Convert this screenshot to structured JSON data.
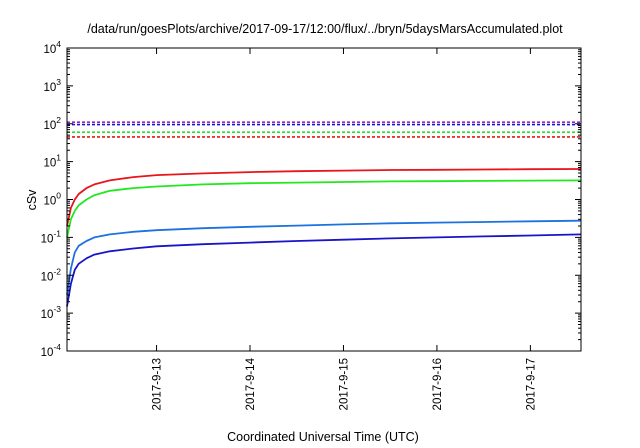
{
  "chart_data": {
    "type": "line",
    "title": "/data/run/goesPlots/archive/2017-09-17/12:00/flux/../bryn/5daysMarsAccumulated.plot",
    "xlabel": "Coordinated Universal Time (UTC)",
    "ylabel": "cSv",
    "y_scale": "log",
    "ylim": [
      0.0001,
      10000
    ],
    "y_ticks": [
      {
        "base": "10",
        "exp": "-4"
      },
      {
        "base": "10",
        "exp": "-3"
      },
      {
        "base": "10",
        "exp": "-2"
      },
      {
        "base": "10",
        "exp": "-1"
      },
      {
        "base": "10",
        "exp": "0"
      },
      {
        "base": "10",
        "exp": "1"
      },
      {
        "base": "10",
        "exp": "2"
      },
      {
        "base": "10",
        "exp": "3"
      },
      {
        "base": "10",
        "exp": "4"
      }
    ],
    "xlim": [
      "2017-09-12 01:00",
      "2017-09-17 13:00"
    ],
    "x_ticks": [
      "2017-9-13",
      "2017-9-14",
      "2017-9-15",
      "2017-9-16",
      "2017-9-17"
    ],
    "grid": false,
    "series": [
      {
        "color": "#e8151b",
        "style": "solid",
        "x": [
          "2017-09-12 01:00",
          "2017-09-12 02:00",
          "2017-09-12 03:00",
          "2017-09-12 04:00",
          "2017-09-12 06:00",
          "2017-09-12 08:00",
          "2017-09-12 12:00",
          "2017-09-12 18:00",
          "2017-09-13 00:00",
          "2017-09-13 12:00",
          "2017-09-14 00:00",
          "2017-09-14 12:00",
          "2017-09-15 00:00",
          "2017-09-15 12:00",
          "2017-09-16 00:00",
          "2017-09-16 12:00",
          "2017-09-17 00:00",
          "2017-09-17 13:00"
        ],
        "y": [
          0.2,
          0.6,
          1.0,
          1.4,
          2.0,
          2.5,
          3.2,
          3.9,
          4.4,
          4.9,
          5.3,
          5.6,
          5.8,
          6.0,
          6.1,
          6.2,
          6.3,
          6.4
        ]
      },
      {
        "color": "#22e81f",
        "style": "solid",
        "x": [
          "2017-09-12 01:00",
          "2017-09-12 02:00",
          "2017-09-12 03:00",
          "2017-09-12 04:00",
          "2017-09-12 06:00",
          "2017-09-12 08:00",
          "2017-09-12 12:00",
          "2017-09-12 18:00",
          "2017-09-13 00:00",
          "2017-09-13 12:00",
          "2017-09-14 00:00",
          "2017-09-14 12:00",
          "2017-09-15 00:00",
          "2017-09-15 12:00",
          "2017-09-16 00:00",
          "2017-09-16 12:00",
          "2017-09-17 00:00",
          "2017-09-17 13:00"
        ],
        "y": [
          0.1,
          0.3,
          0.5,
          0.7,
          1.0,
          1.3,
          1.7,
          2.0,
          2.2,
          2.5,
          2.7,
          2.8,
          2.9,
          3.0,
          3.05,
          3.1,
          3.15,
          3.2
        ]
      },
      {
        "color": "#1d72e0",
        "style": "solid",
        "x": [
          "2017-09-12 01:00",
          "2017-09-12 02:00",
          "2017-09-12 03:00",
          "2017-09-12 04:00",
          "2017-09-12 06:00",
          "2017-09-12 08:00",
          "2017-09-12 12:00",
          "2017-09-12 18:00",
          "2017-09-13 00:00",
          "2017-09-13 12:00",
          "2017-09-14 00:00",
          "2017-09-14 12:00",
          "2017-09-15 00:00",
          "2017-09-15 12:00",
          "2017-09-16 00:00",
          "2017-09-16 12:00",
          "2017-09-17 00:00",
          "2017-09-17 13:00"
        ],
        "y": [
          0.003,
          0.015,
          0.04,
          0.06,
          0.08,
          0.1,
          0.12,
          0.14,
          0.155,
          0.175,
          0.19,
          0.205,
          0.22,
          0.235,
          0.245,
          0.255,
          0.265,
          0.275
        ]
      },
      {
        "color": "#1a14c8",
        "style": "solid",
        "x": [
          "2017-09-12 01:00",
          "2017-09-12 02:00",
          "2017-09-12 03:00",
          "2017-09-12 04:00",
          "2017-09-12 06:00",
          "2017-09-12 08:00",
          "2017-09-12 12:00",
          "2017-09-12 18:00",
          "2017-09-13 00:00",
          "2017-09-13 12:00",
          "2017-09-14 00:00",
          "2017-09-14 12:00",
          "2017-09-15 00:00",
          "2017-09-15 12:00",
          "2017-09-16 00:00",
          "2017-09-16 12:00",
          "2017-09-17 00:00",
          "2017-09-17 13:00"
        ],
        "y": [
          0.0015,
          0.006,
          0.014,
          0.02,
          0.028,
          0.035,
          0.043,
          0.051,
          0.058,
          0.066,
          0.073,
          0.08,
          0.087,
          0.094,
          0.1,
          0.106,
          0.112,
          0.12
        ]
      },
      {
        "color": "#9b1fd6",
        "style": "dashed",
        "x": [
          "2017-09-12 01:00",
          "2017-09-17 13:00"
        ],
        "y": [
          110,
          110
        ]
      },
      {
        "color": "#1a14c8",
        "style": "dashed",
        "x": [
          "2017-09-12 01:00",
          "2017-09-17 13:00"
        ],
        "y": [
          95,
          95
        ]
      },
      {
        "color": "#22e81f",
        "style": "dashed",
        "x": [
          "2017-09-12 01:00",
          "2017-09-17 13:00"
        ],
        "y": [
          60,
          60
        ]
      },
      {
        "color": "#e8151b",
        "style": "dashed",
        "x": [
          "2017-09-12 01:00",
          "2017-09-17 13:00"
        ],
        "y": [
          45,
          45
        ]
      }
    ]
  }
}
